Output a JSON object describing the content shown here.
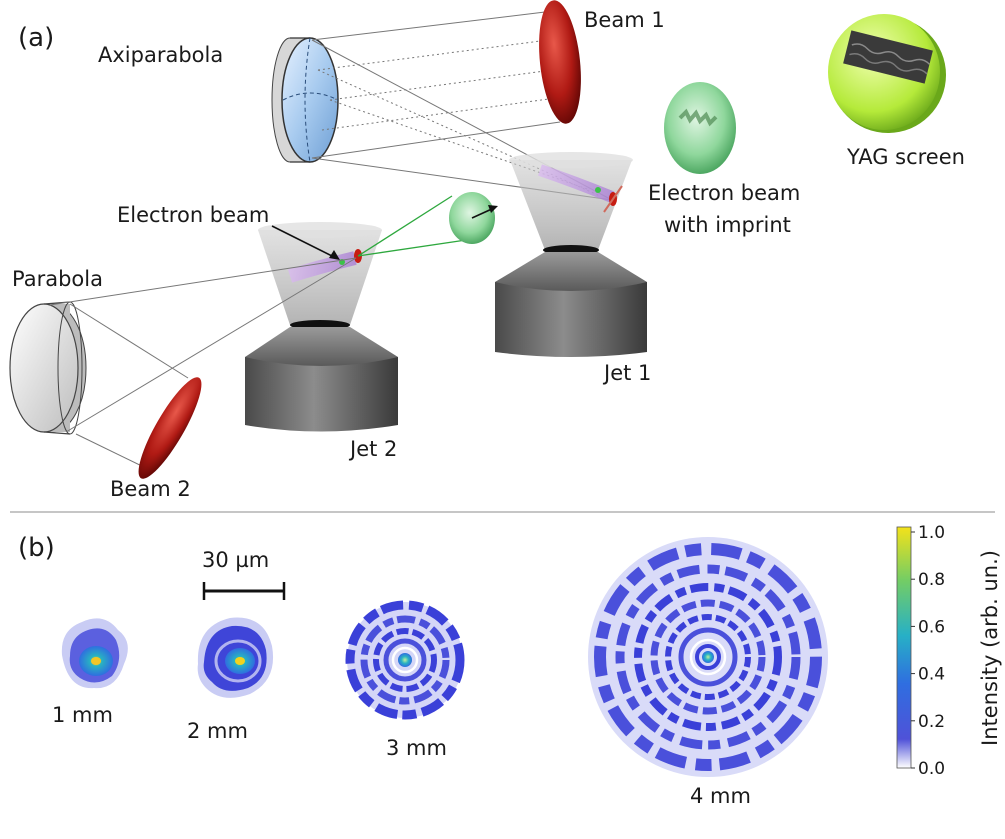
{
  "panel_a": {
    "label": "(a)",
    "labels": {
      "axiparabola": "Axiparabola",
      "beam1": "Beam 1",
      "yag": "YAG screen",
      "electron_beam_imprint_line1": "Electron beam",
      "electron_beam_imprint_line2": "with imprint",
      "electron_beam": "Electron beam",
      "parabola": "Parabola",
      "jet1": "Jet 1",
      "jet2": "Jet 2",
      "beam2": "Beam 2"
    }
  },
  "panel_b": {
    "label": "(b)",
    "scalebar_label": "30 µm",
    "spots": [
      {
        "label": "1 mm"
      },
      {
        "label": "2 mm"
      },
      {
        "label": "3 mm"
      },
      {
        "label": "4 mm"
      }
    ],
    "colorbar": {
      "title": "Intensity (arb. un.)",
      "ticks": [
        "1.0",
        "0.8",
        "0.6",
        "0.4",
        "0.2",
        "0.0"
      ],
      "colors": [
        "#ffffff",
        "#3b3fd6",
        "#2a7ed8",
        "#26b5c4",
        "#6fcf6a",
        "#f0e020"
      ]
    }
  }
}
